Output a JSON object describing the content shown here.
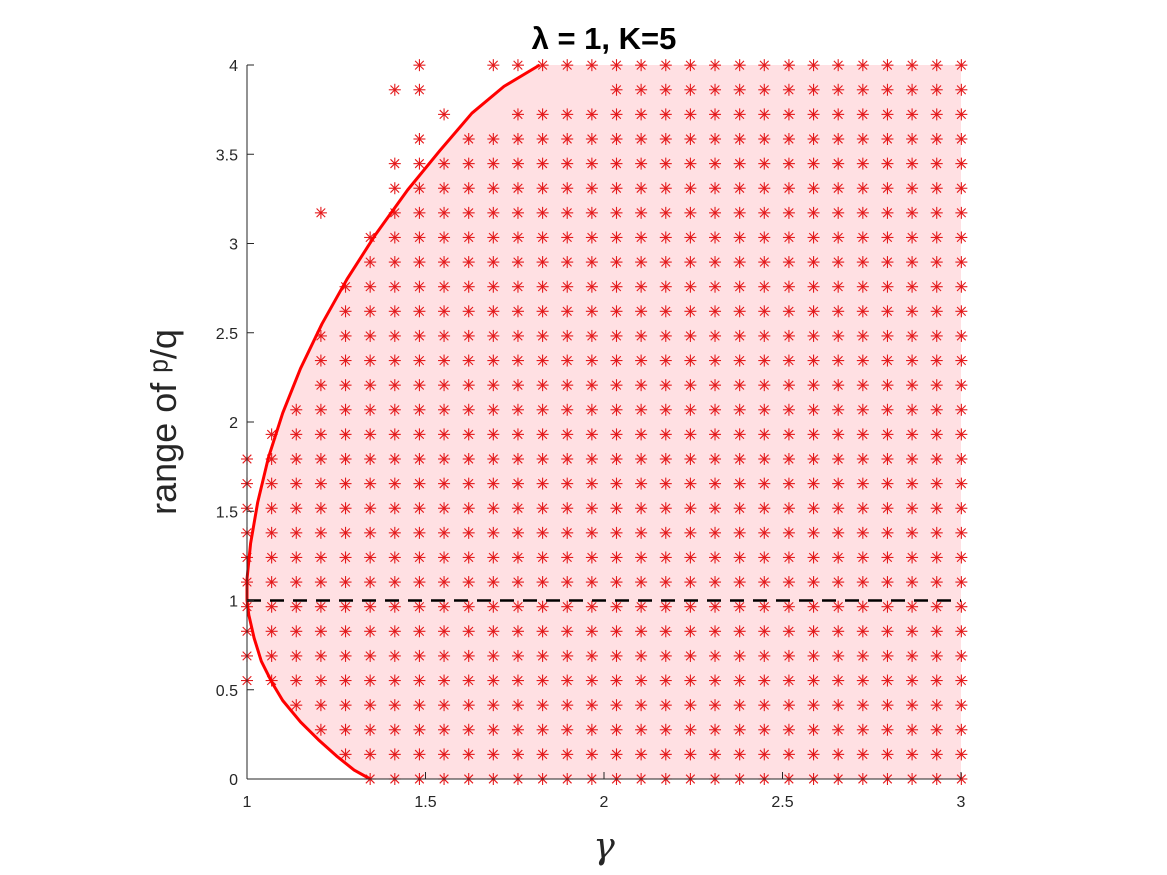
{
  "chart_data": {
    "type": "scatter",
    "title": "λ = 1, K=5",
    "xlabel": "γ",
    "ylabel": "range of ᵖ/q",
    "xlim": [
      1,
      3
    ],
    "ylim": [
      0,
      4
    ],
    "xticks": [
      "1",
      "1.5",
      "2",
      "2.5",
      "3"
    ],
    "yticks": [
      "0",
      "0.5",
      "1",
      "1.5",
      "2",
      "2.5",
      "3",
      "3.5",
      "4"
    ],
    "grid": false,
    "legend": "none",
    "colors": {
      "markers": "#e41a1c",
      "boundary": "#ff0000",
      "region": "#ffe0e3",
      "reference_line": "#000000"
    },
    "marker_grid": {
      "x_start": 1.0,
      "x_step": 0.069,
      "x_count": 30,
      "y_start": 0.0,
      "y_step": 0.1379,
      "y_count": 30
    },
    "marker_first_x_by_row": [
      1.345,
      1.276,
      1.207,
      1.138,
      1.0,
      1.0,
      1.0,
      1.0,
      1.0,
      1.0,
      1.0,
      1.0,
      1.0,
      1.0,
      1.069,
      1.138,
      1.207,
      1.207,
      1.207,
      1.276,
      1.276,
      1.345,
      1.345,
      1.207,
      1.414,
      1.414,
      1.483,
      1.483,
      1.414,
      1.483
    ],
    "marker_extra_gaps": [
      [
        29,
        1.552
      ],
      [
        29,
        1.621
      ],
      [
        28,
        1.552
      ],
      [
        28,
        1.621
      ],
      [
        28,
        1.69
      ],
      [
        28,
        1.759
      ],
      [
        28,
        1.828
      ],
      [
        28,
        1.897
      ],
      [
        28,
        1.966
      ],
      [
        27,
        1.414
      ],
      [
        27,
        1.483
      ],
      [
        27,
        1.621
      ],
      [
        27,
        1.69
      ],
      [
        26,
        1.552
      ],
      [
        23,
        1.276
      ],
      [
        23,
        1.345
      ]
    ],
    "series": [
      {
        "type": "line",
        "style": "solid",
        "x": [
          1.345,
          1.3,
          1.25,
          1.2,
          1.15,
          1.1,
          1.07,
          1.04,
          1.02,
          1.005,
          1.0,
          1.0,
          1.01,
          1.03,
          1.06,
          1.1,
          1.15,
          1.21,
          1.28,
          1.36,
          1.45,
          1.54,
          1.63,
          1.72,
          1.82
        ],
        "y": [
          0.0,
          0.05,
          0.13,
          0.22,
          0.32,
          0.44,
          0.54,
          0.66,
          0.79,
          0.92,
          1.0,
          1.12,
          1.32,
          1.55,
          1.8,
          2.05,
          2.3,
          2.55,
          2.8,
          3.05,
          3.3,
          3.52,
          3.73,
          3.88,
          4.0
        ]
      },
      {
        "type": "line",
        "style": "dashed",
        "x": [
          1,
          3
        ],
        "y": [
          1,
          1
        ]
      }
    ]
  }
}
